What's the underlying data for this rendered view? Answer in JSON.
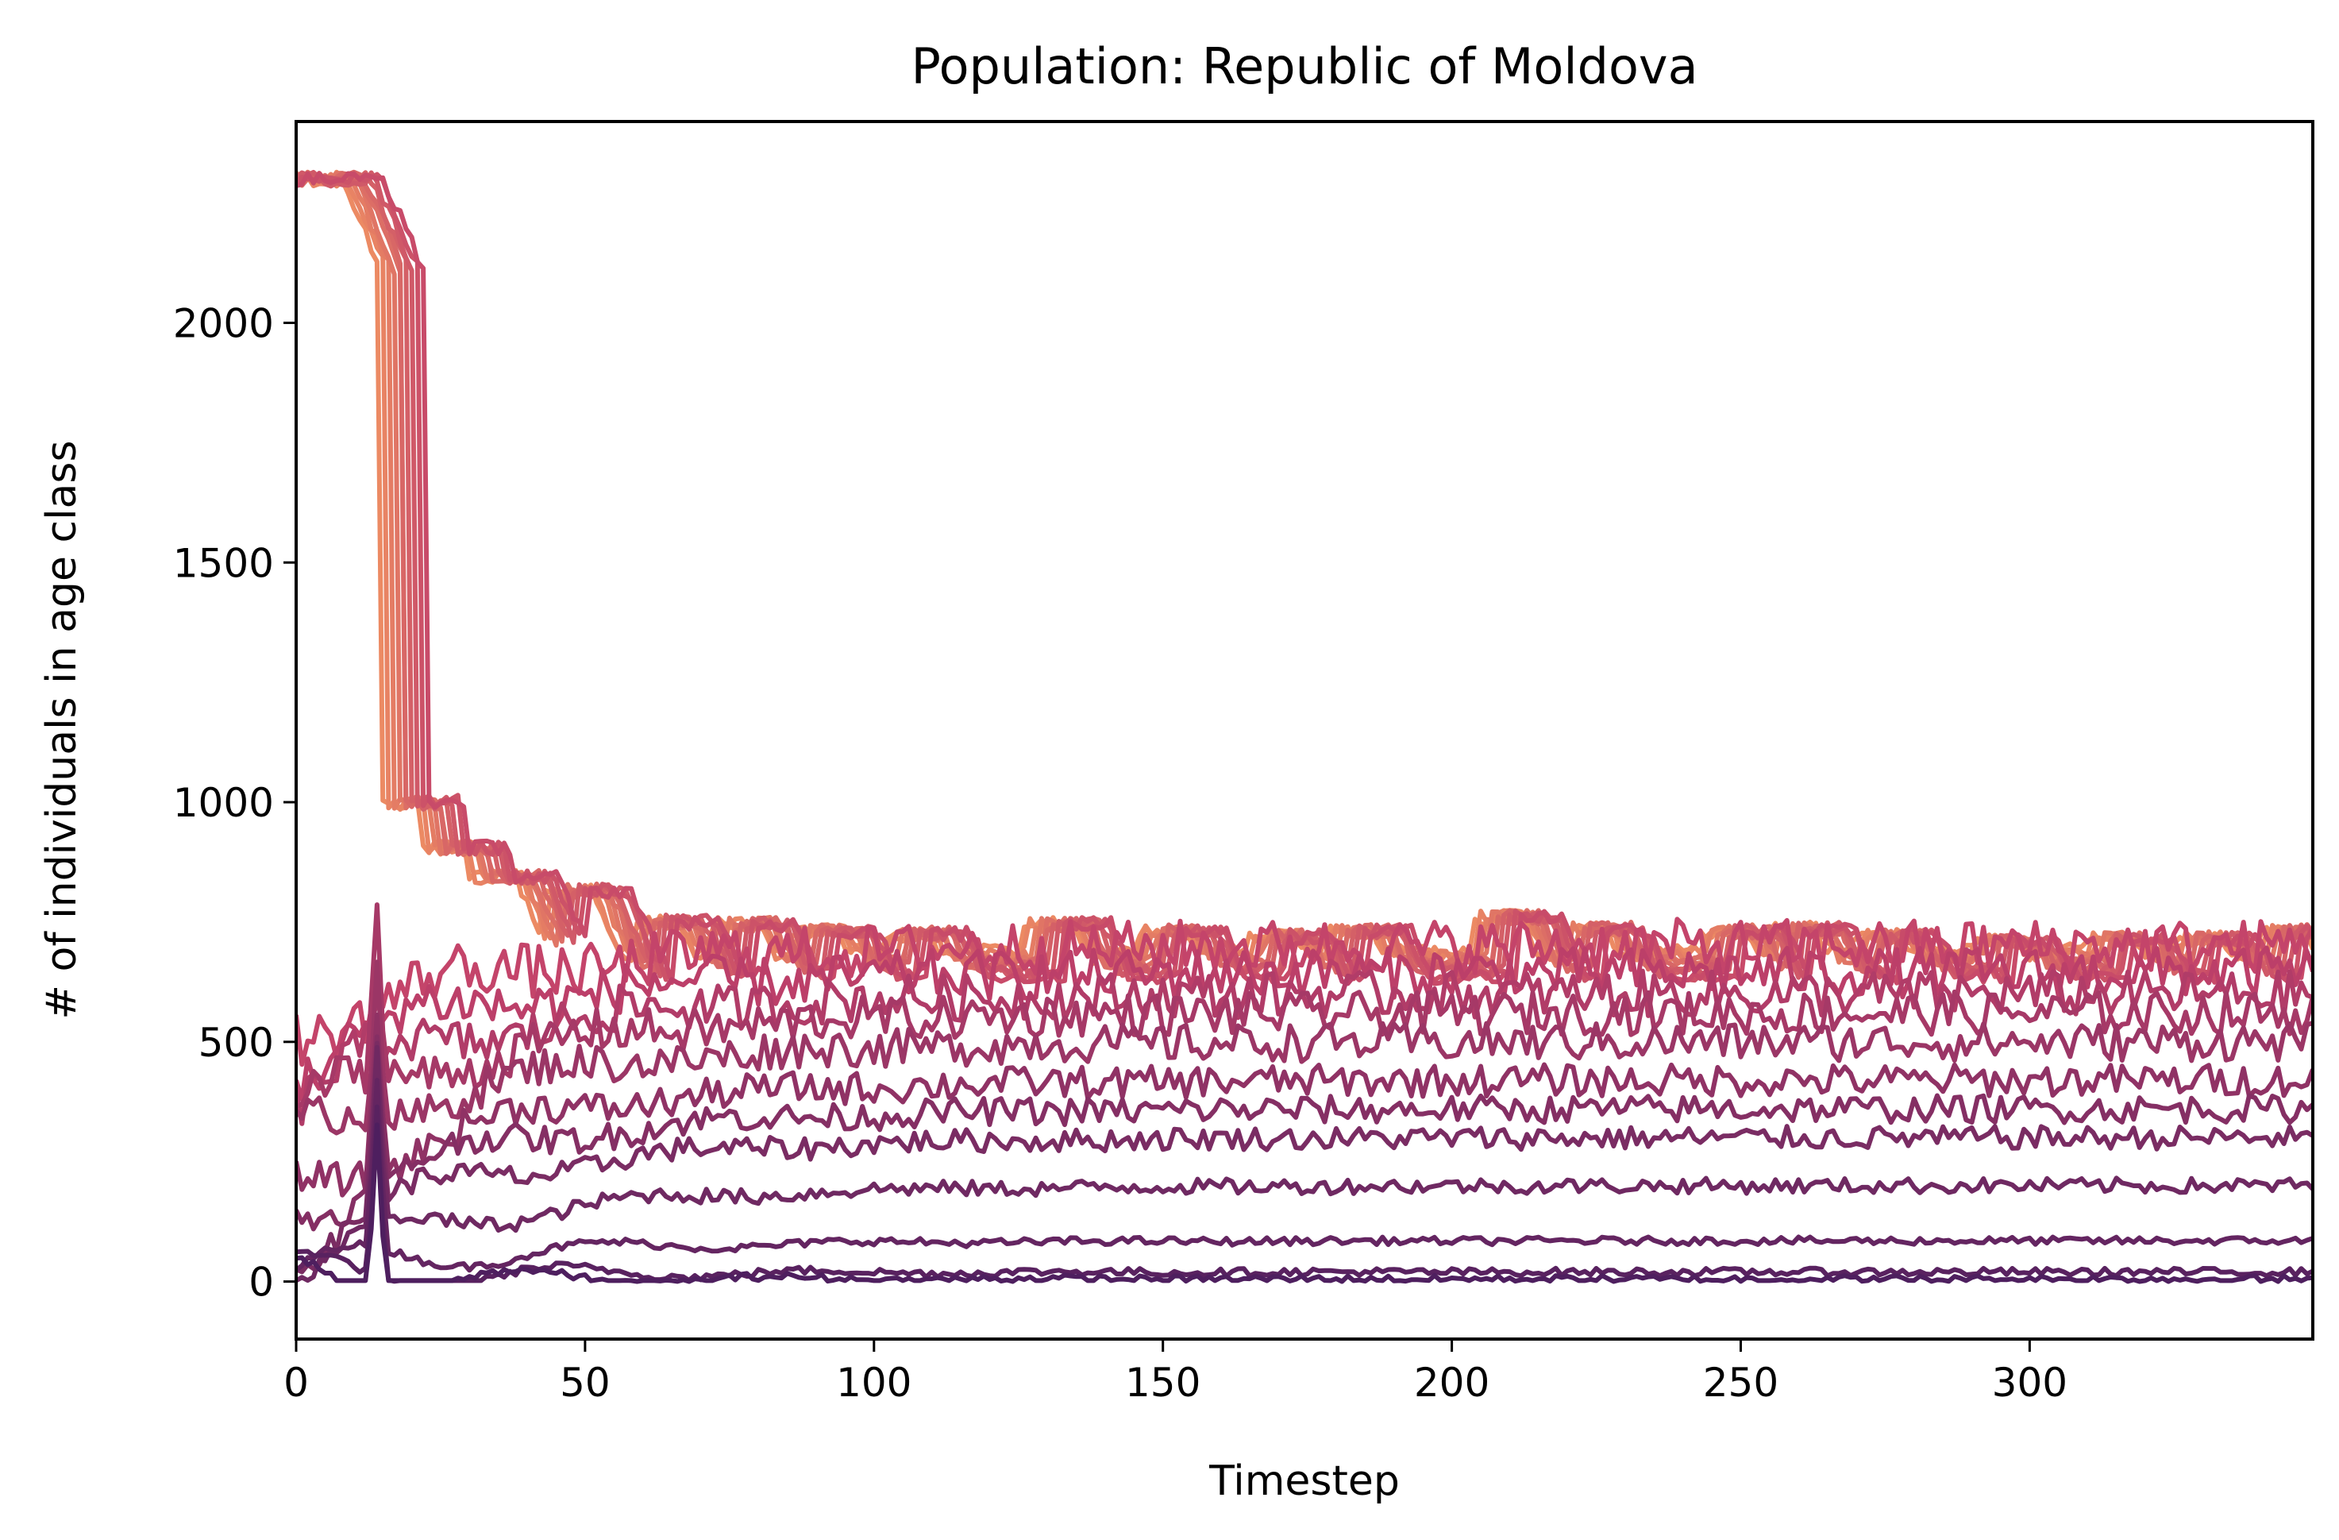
{
  "chart_data": {
    "type": "line",
    "title": "Population: Republic of Moldova",
    "xlabel": "Timestep",
    "ylabel": "# of individuals in age class",
    "xlim": [
      0,
      349
    ],
    "ylim": [
      -120,
      2420
    ],
    "xticks": [
      0,
      50,
      100,
      150,
      200,
      250,
      300
    ],
    "yticks": [
      0,
      500,
      1000,
      1500,
      2000
    ],
    "grid": false,
    "legend": "none",
    "colormap": {
      "light": "#ec8a63",
      "mid": "#c2416a",
      "dark": "#4e1f5f"
    },
    "series_count": 22,
    "lower_band_levels": [
      540,
      470,
      390,
      340,
      275,
      185,
      150,
      85,
      30,
      15,
      5
    ],
    "upper_band_levels": [
      2300,
      1000,
      905,
      845,
      815,
      750,
      745,
      730,
      725,
      745,
      730,
      720,
      730,
      760,
      735,
      730,
      735,
      720,
      710,
      715,
      715,
      730
    ],
    "phase_starts": [
      0,
      15,
      22,
      30,
      43,
      58,
      72,
      86,
      102,
      126,
      146,
      165,
      178,
      204,
      219,
      243,
      255,
      270,
      290,
      310,
      325,
      340
    ],
    "stable_levels_late": [
      700,
      645,
      600,
      560,
      500,
      420,
      360,
      300,
      200,
      85,
      20,
      5
    ]
  }
}
